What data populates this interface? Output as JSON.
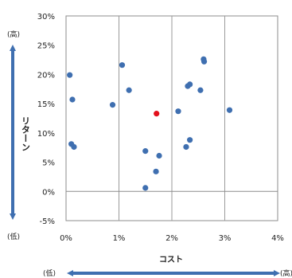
{
  "chart_data": {
    "type": "scatter",
    "xlabel": "コスト",
    "ylabel": "リターン",
    "xlim": [
      0,
      4
    ],
    "ylim": [
      -5,
      30
    ],
    "x_ticks": [
      0,
      1,
      2,
      3,
      4
    ],
    "x_tick_labels": [
      "0%",
      "1%",
      "2%",
      "3%",
      "4%"
    ],
    "y_ticks": [
      -5,
      0,
      5,
      10,
      15,
      20,
      25,
      30
    ],
    "y_tick_labels": [
      "-5%",
      "0%",
      "5%",
      "10%",
      "15%",
      "20%",
      "25%",
      "30%"
    ],
    "grid": "vertical",
    "y_axis_high_label": "(高)",
    "y_axis_low_label": "(低)",
    "x_axis_low_label": "(低)",
    "x_axis_high_label": "(高)",
    "series": [
      {
        "color": "#3f6fb0",
        "points": [
          {
            "x": 0.07,
            "y": 19.9
          },
          {
            "x": 0.12,
            "y": 15.7
          },
          {
            "x": 0.1,
            "y": 8.1
          },
          {
            "x": 0.15,
            "y": 7.6
          },
          {
            "x": 0.88,
            "y": 14.8
          },
          {
            "x": 1.06,
            "y": 21.6
          },
          {
            "x": 1.19,
            "y": 17.3
          },
          {
            "x": 1.5,
            "y": 6.9
          },
          {
            "x": 1.5,
            "y": 0.6
          },
          {
            "x": 1.7,
            "y": 3.4
          },
          {
            "x": 1.76,
            "y": 6.1
          },
          {
            "x": 2.12,
            "y": 13.7
          },
          {
            "x": 2.27,
            "y": 7.6
          },
          {
            "x": 2.3,
            "y": 18.0
          },
          {
            "x": 2.34,
            "y": 18.3
          },
          {
            "x": 2.34,
            "y": 8.8
          },
          {
            "x": 2.54,
            "y": 17.3
          },
          {
            "x": 2.6,
            "y": 22.6
          },
          {
            "x": 2.61,
            "y": 22.2
          },
          {
            "x": 3.09,
            "y": 13.9
          }
        ]
      },
      {
        "color": "#e3101c",
        "points": [
          {
            "x": 1.71,
            "y": 13.3
          }
        ]
      }
    ],
    "axis_arrow_color": "#3f6fb0"
  }
}
